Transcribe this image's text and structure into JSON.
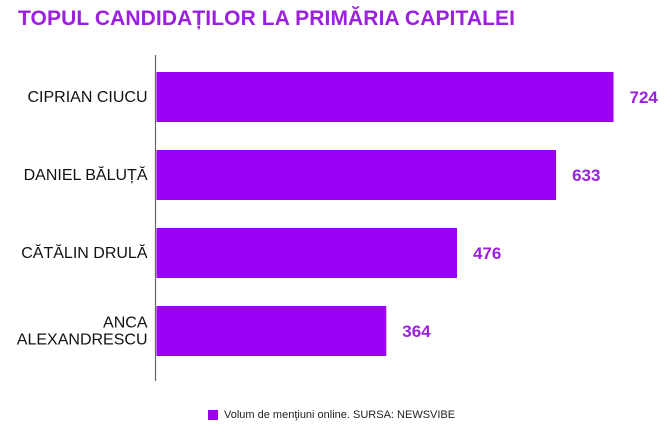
{
  "chart_data": {
    "type": "bar",
    "orientation": "horizontal",
    "title": "TOPUL CANDIDAȚILOR LA PRIMĂRIA CAPITALEI",
    "categories": [
      [
        "CIPRIAN CIUCU"
      ],
      [
        "DANIEL BĂLUȚĂ"
      ],
      [
        "CĂTĂLIN DRULĂ"
      ],
      [
        "ANCA",
        "ALEXANDRESCU"
      ]
    ],
    "values": [
      724,
      633,
      476,
      364
    ],
    "series_name": "Volum de menţiuni online. SURSA: NEWSVIBE",
    "xlim": [
      0,
      800
    ],
    "grid": false,
    "legend_position": "bottom-center",
    "bar_color": "#9b00f5",
    "label_color": "#9b20e0",
    "title_color": "#9b20e0",
    "axis_color": "#666666"
  }
}
